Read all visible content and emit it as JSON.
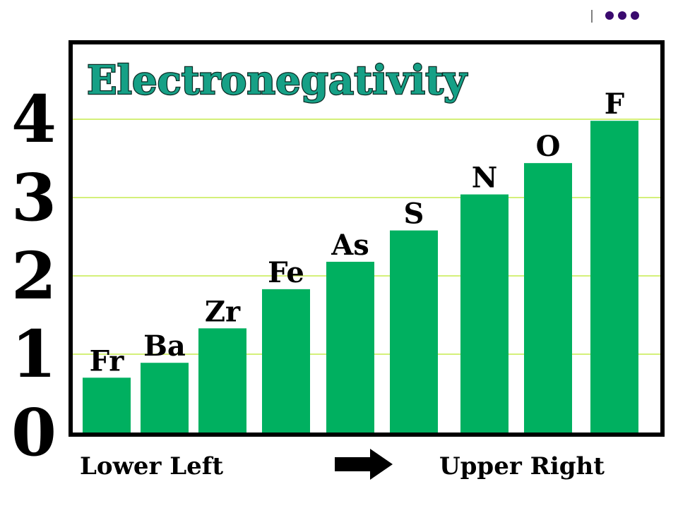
{
  "colors": {
    "bar": "#00b060",
    "gridline": "#d4f07a",
    "frame": "#000000",
    "title_fill": "#16a086",
    "title_outline": "#0b2b24",
    "dots": "#3a0a6e",
    "accent": "#e8c000"
  },
  "decoration": {
    "dots_icon": "ellipsis-dots-icon",
    "arrow_icon": "right-arrow-icon"
  },
  "chart_data": {
    "type": "bar",
    "title": "Electronegativity",
    "categories": [
      "Fr",
      "Ba",
      "Zr",
      "Fe",
      "As",
      "S",
      "N",
      "O",
      "F"
    ],
    "values": [
      0.7,
      0.89,
      1.33,
      1.83,
      2.18,
      2.58,
      3.04,
      3.44,
      3.98
    ],
    "yticks": [
      "0",
      "1",
      "2",
      "3",
      "4"
    ],
    "ylim": [
      0,
      4
    ],
    "grid": true,
    "x_caption_left": "Lower Left",
    "x_caption_right": "Upper Right"
  }
}
